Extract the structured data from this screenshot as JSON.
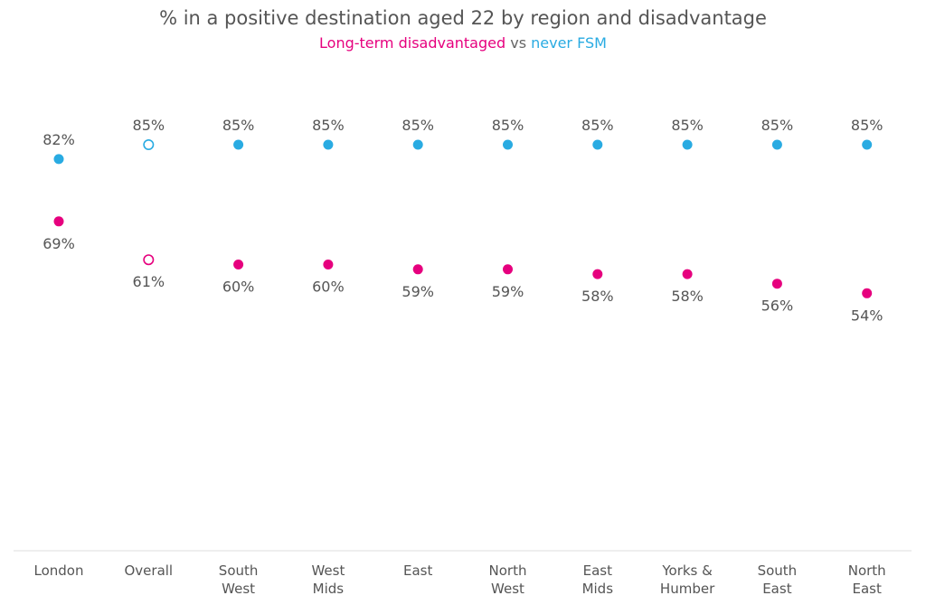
{
  "chart_data": {
    "type": "scatter",
    "title": "% in a positive destination aged 22 by region and disadvantage",
    "subtitle_parts": [
      {
        "text": "Long-term disadvantaged",
        "color": "#e6007e"
      },
      {
        "text": " vs ",
        "color": "#666666"
      },
      {
        "text": "never FSM",
        "color": "#29abe2"
      }
    ],
    "categories": [
      [
        "London"
      ],
      [
        "Overall"
      ],
      [
        "South",
        "West"
      ],
      [
        "West",
        "Mids"
      ],
      [
        "East"
      ],
      [
        "North",
        "West"
      ],
      [
        "East",
        "Mids"
      ],
      [
        "Yorks &",
        "Humber"
      ],
      [
        "South",
        "East"
      ],
      [
        "North",
        "East"
      ]
    ],
    "series": [
      {
        "name": "never FSM",
        "color": "#29abe2",
        "values": [
          82,
          85,
          85,
          85,
          85,
          85,
          85,
          85,
          85,
          85
        ],
        "labels": [
          "82%",
          "85%",
          "85%",
          "85%",
          "85%",
          "85%",
          "85%",
          "85%",
          "85%",
          "85%"
        ],
        "label_position": "above"
      },
      {
        "name": "Long-term disadvantaged",
        "color": "#e6007e",
        "values": [
          69,
          61,
          60,
          60,
          59,
          59,
          58,
          58,
          56,
          54
        ],
        "labels": [
          "69%",
          "61%",
          "60%",
          "60%",
          "59%",
          "59%",
          "58%",
          "58%",
          "56%",
          "54%"
        ],
        "label_position": "below"
      }
    ],
    "hollow_category_index": 1,
    "grid": false,
    "legend": "subtitle"
  }
}
